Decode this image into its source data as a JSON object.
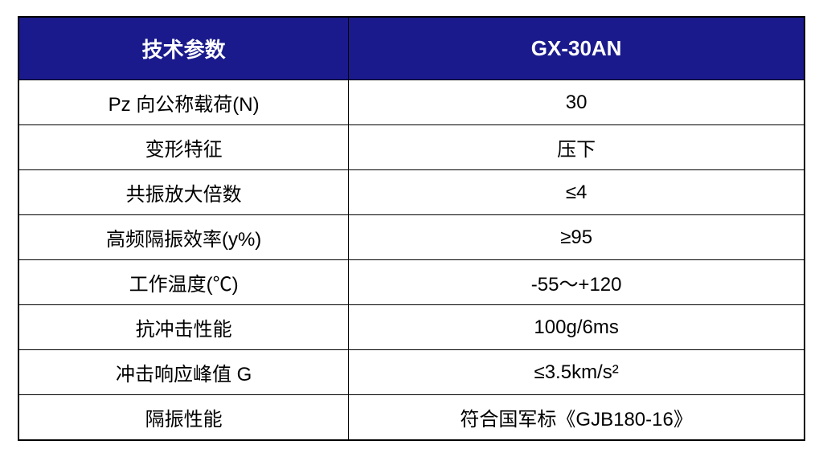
{
  "table": {
    "type": "table",
    "header_background_color": "#1a1a8c",
    "header_text_color": "#ffffff",
    "border_color": "#000000",
    "cell_text_color": "#000000",
    "header_fontsize": 26,
    "cell_fontsize": 24,
    "columns": [
      {
        "label": "技术参数",
        "width": "42%"
      },
      {
        "label": "GX-30AN",
        "width": "58%"
      }
    ],
    "rows": [
      {
        "param": "Pz 向公称载荷(N)",
        "value": "30"
      },
      {
        "param": "变形特征",
        "value": "压下"
      },
      {
        "param": "共振放大倍数",
        "value": "≤4"
      },
      {
        "param": "高频隔振效率(y%)",
        "value": "≥95"
      },
      {
        "param": "工作温度(℃)",
        "value": "-55～+120"
      },
      {
        "param": "抗冲击性能",
        "value": "100g/6ms"
      },
      {
        "param": "冲击响应峰值 G",
        "value": "≤3.5km/s²"
      },
      {
        "param": "隔振性能",
        "value": "符合国军标《GJB180-16》"
      }
    ]
  }
}
